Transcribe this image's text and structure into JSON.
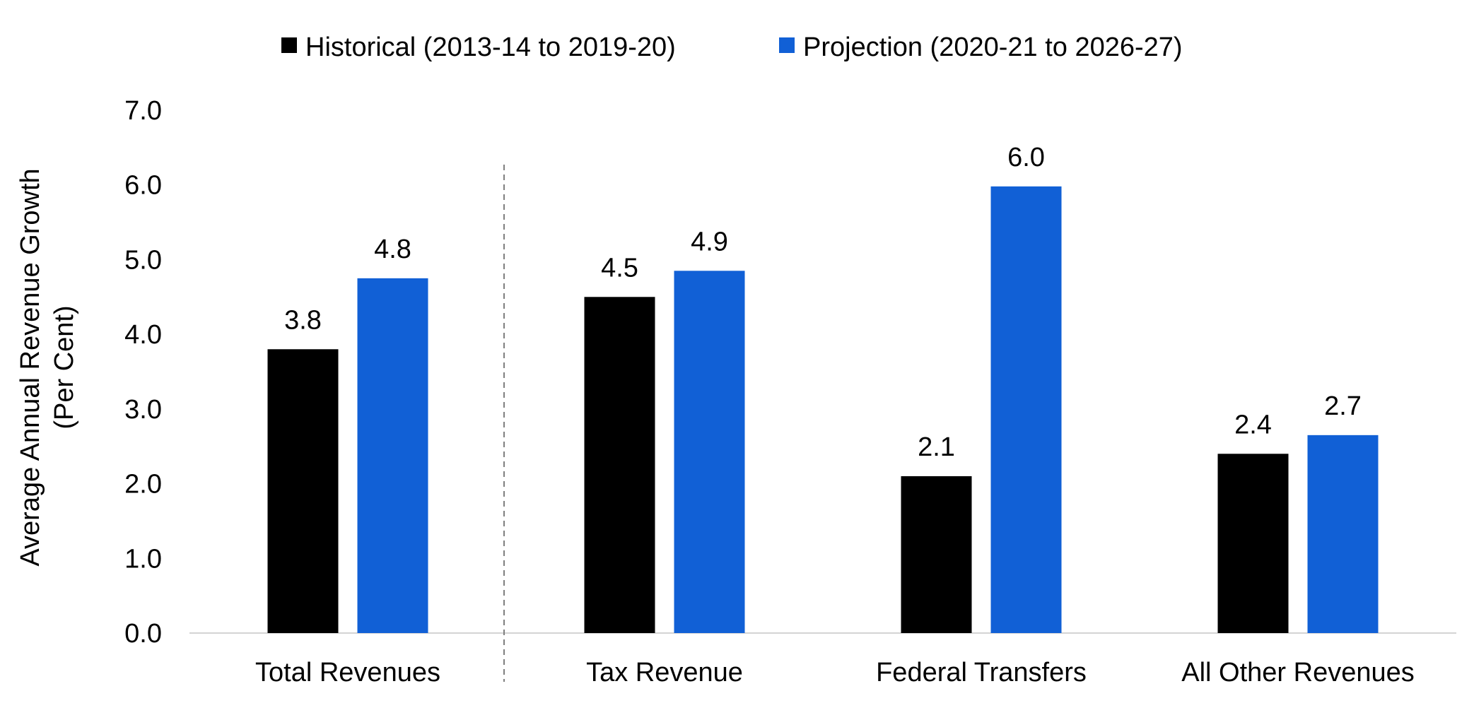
{
  "chart_data": {
    "type": "bar",
    "title": "",
    "xlabel": "",
    "ylabel": [
      "Average Annual Revenue Growth",
      "(Per Cent)"
    ],
    "categories": [
      "Total Revenues",
      "Tax Revenue",
      "Federal Transfers",
      "All Other Revenues"
    ],
    "series": [
      {
        "name": "Historical (2013-14 to 2019-20)",
        "color": "#000000",
        "values": [
          3.8,
          4.5,
          2.1,
          2.4
        ],
        "labels": [
          "3.8",
          "4.5",
          "2.1",
          "2.4"
        ]
      },
      {
        "name": "Projection (2020-21 to 2026-27)",
        "color": "#1160d6",
        "values": [
          4.75,
          4.85,
          5.98,
          2.65
        ],
        "labels": [
          "4.8",
          "4.9",
          "6.0",
          "2.7"
        ]
      }
    ],
    "ylim": [
      0,
      7
    ],
    "yticks": [
      "0.0",
      "1.0",
      "2.0",
      "3.0",
      "4.0",
      "5.0",
      "6.0",
      "7.0"
    ],
    "grid": false,
    "legend_position": "top-center",
    "separator_after_category": "Total Revenues"
  }
}
